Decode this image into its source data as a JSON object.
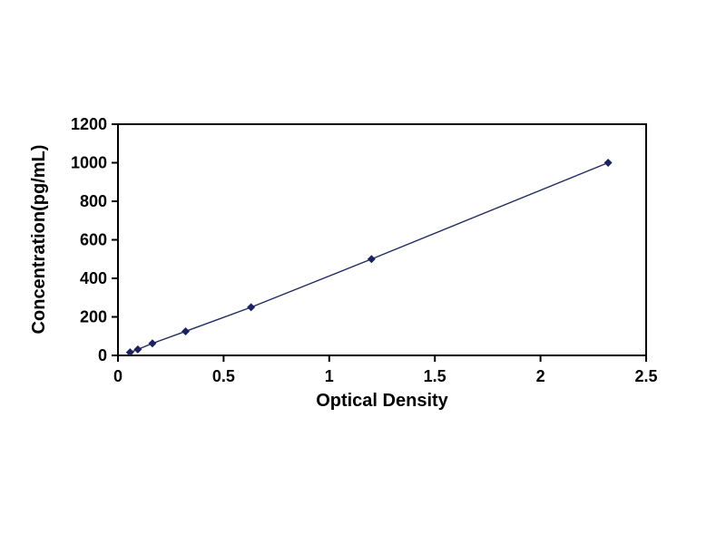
{
  "chart_data": {
    "type": "line",
    "title": "",
    "xlabel": "Optical Density",
    "ylabel": "Concentration(pg/mL)",
    "x": [
      0.057,
      0.094,
      0.163,
      0.32,
      0.63,
      1.2,
      2.32
    ],
    "y": [
      15.6,
      31.2,
      62.5,
      125,
      250,
      500,
      1000
    ],
    "xlim": [
      0,
      2.5
    ],
    "ylim": [
      0,
      1200
    ],
    "x_tick_values": [
      0,
      0.5,
      1,
      1.5,
      2,
      2.5
    ],
    "x_tick_labels": [
      "0",
      "0.5",
      "1",
      "1.5",
      "2",
      "2.5"
    ],
    "y_tick_values": [
      0,
      200,
      400,
      600,
      800,
      1000,
      1200
    ],
    "y_tick_labels": [
      "0",
      "200",
      "400",
      "600",
      "800",
      "1000",
      "1200"
    ],
    "line_color": "#232a63",
    "marker_color": "#1c2260",
    "marker": "diamond",
    "grid": false,
    "legend": "none",
    "background_color": "#ffffff",
    "frame_color": "#000000"
  }
}
